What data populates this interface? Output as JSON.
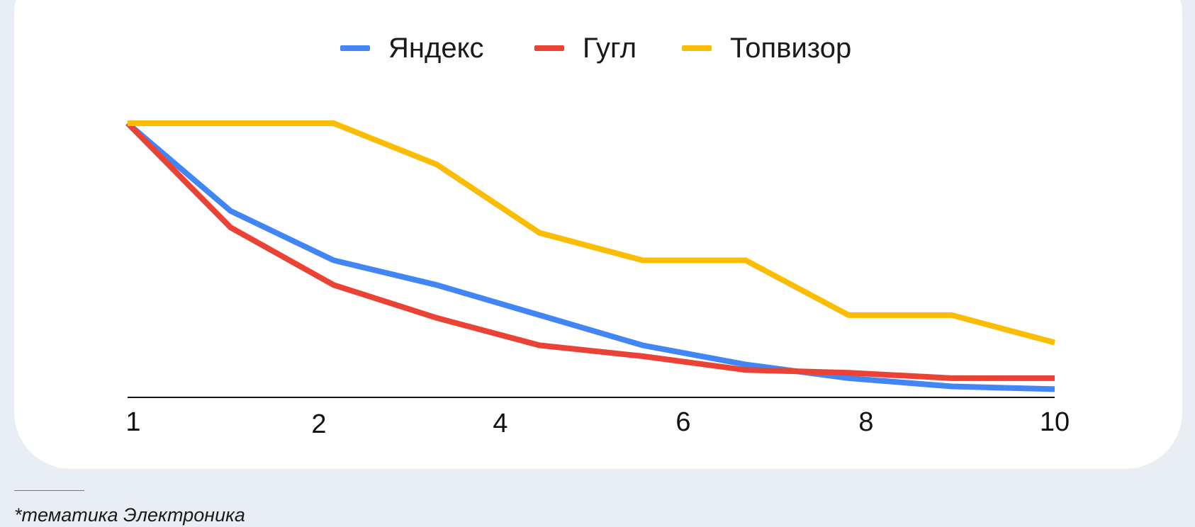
{
  "chart_data": {
    "type": "line",
    "title": "",
    "xlabel": "",
    "ylabel": "",
    "x": [
      1,
      2,
      3,
      4,
      5,
      6,
      7,
      8,
      9,
      10
    ],
    "x_tick_labels": [
      "1",
      "2",
      "4",
      "6",
      "8",
      "10"
    ],
    "ylim": [
      0,
      100
    ],
    "grid": false,
    "legend_position": "top-center",
    "series": [
      {
        "name": "Яндекс",
        "color": "#4285f4",
        "values": [
          100,
          68,
          50,
          41,
          30,
          19,
          12,
          7,
          4,
          3
        ]
      },
      {
        "name": "Гугл",
        "color": "#ea4335",
        "values": [
          100,
          62,
          41,
          29,
          19,
          15,
          10,
          9,
          7,
          7
        ]
      },
      {
        "name": "Топвизор",
        "color": "#fbbc04",
        "values": [
          100,
          100,
          100,
          85,
          60,
          50,
          50,
          30,
          30,
          20
        ]
      }
    ]
  },
  "footnote": "*тематика Электроника"
}
